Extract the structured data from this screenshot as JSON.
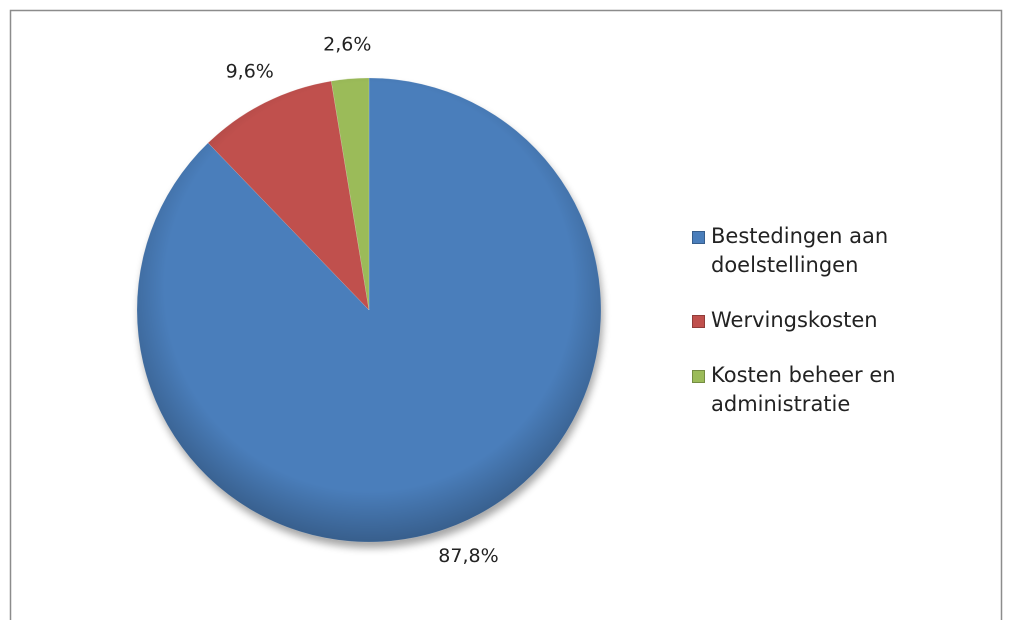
{
  "chart_data": {
    "type": "pie",
    "categories": [
      "Bestedingen aan doelstellingen",
      "Wervingskosten",
      "Kosten beheer en administratie"
    ],
    "values": [
      87.8,
      9.6,
      2.6
    ],
    "value_labels": [
      "87,8%",
      "9,6%",
      "2,6%"
    ],
    "colors": [
      "#4a7ebb",
      "#c0504d",
      "#9bbb59"
    ],
    "legend": "right"
  }
}
